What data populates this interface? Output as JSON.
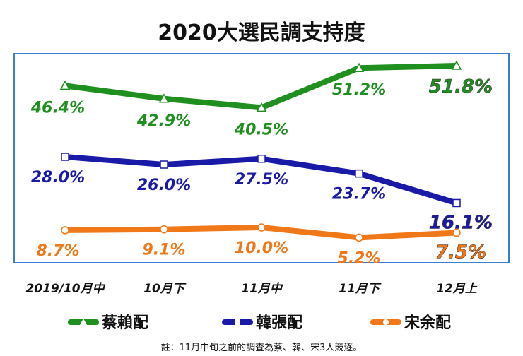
{
  "chart_data": {
    "type": "line",
    "title": "2020大選民調支持度",
    "categories": [
      "2019/10月中",
      "10月下",
      "11月中",
      "11月下",
      "12月上"
    ],
    "series": [
      {
        "name": "蔡賴配",
        "color": "#1f8f1f",
        "marker": "triangle",
        "values": [
          46.4,
          42.9,
          40.5,
          51.2,
          51.8
        ],
        "labels": [
          "46.4%",
          "42.9%",
          "40.5%",
          "51.2%",
          "51.8%"
        ]
      },
      {
        "name": "韓張配",
        "color": "#1a1aa8",
        "marker": "square",
        "values": [
          28.0,
          26.0,
          27.5,
          23.7,
          16.1
        ],
        "labels": [
          "28.0%",
          "26.0%",
          "27.5%",
          "23.7%",
          "16.1%"
        ]
      },
      {
        "name": "宋余配",
        "color": "#f07818",
        "marker": "circle",
        "values": [
          8.7,
          9.1,
          10.0,
          5.2,
          7.5
        ],
        "labels": [
          "8.7%",
          "9.1%",
          "10.0%",
          "5.2%",
          "7.5%"
        ]
      }
    ],
    "note": "註：11月中旬之前的調查為蔡、韓、宋3人競逐。",
    "border_color": "#3b7fd4"
  }
}
